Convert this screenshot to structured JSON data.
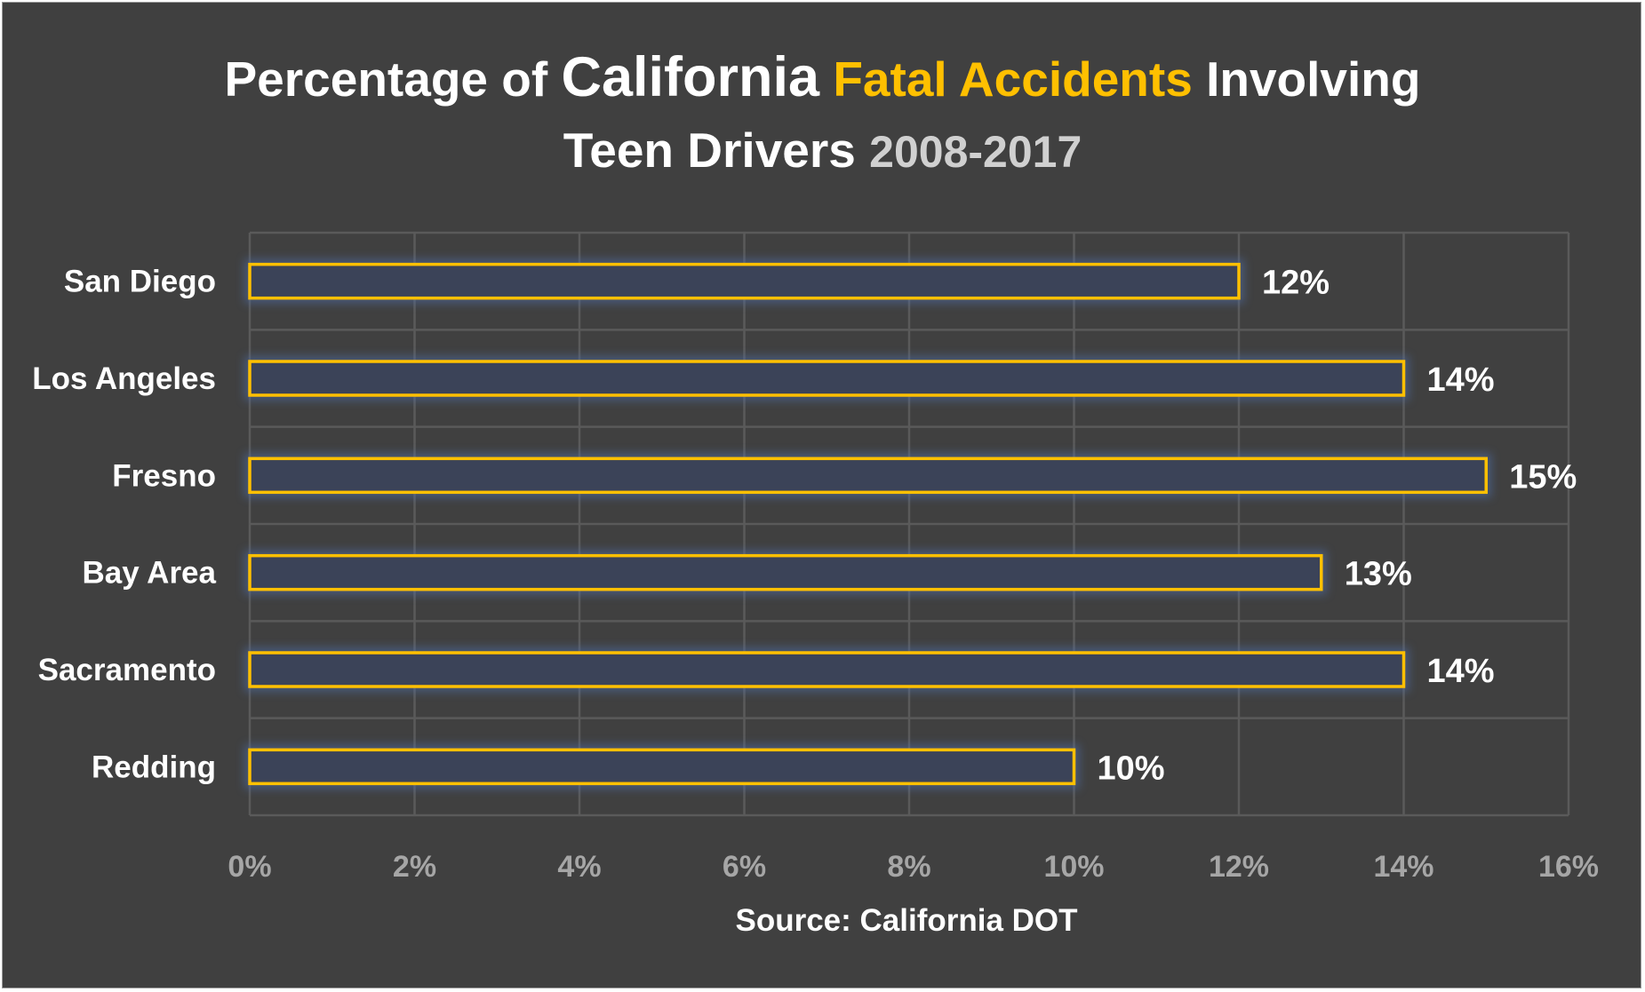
{
  "chart_data": {
    "type": "bar",
    "orientation": "horizontal",
    "title_parts": [
      {
        "text": "Percentage of ",
        "style": "normal"
      },
      {
        "text": "California",
        "style": "big"
      },
      {
        "text": " ",
        "style": "normal"
      },
      {
        "text": "Fatal Accidents",
        "style": "accent"
      },
      {
        "text": " Involving",
        "style": "normal"
      }
    ],
    "subtitle_parts": [
      {
        "text": "Teen Drivers",
        "style": "normal"
      },
      {
        "text": " ",
        "style": "normal"
      },
      {
        "text": "2008-2017",
        "style": "muted"
      }
    ],
    "categories": [
      "San Diego",
      "Los Angeles",
      "Fresno",
      "Bay Area",
      "Sacramento",
      "Redding"
    ],
    "values": [
      12,
      14,
      15,
      13,
      14,
      10
    ],
    "value_labels": [
      "12%",
      "14%",
      "15%",
      "13%",
      "14%",
      "10%"
    ],
    "xlim": [
      0,
      16
    ],
    "x_ticks": [
      0,
      2,
      4,
      6,
      8,
      10,
      12,
      14,
      16
    ],
    "x_tick_labels": [
      "0%",
      "2%",
      "4%",
      "6%",
      "8%",
      "10%",
      "12%",
      "14%",
      "16%"
    ],
    "xlabel": "Source: California DOT",
    "grid": true,
    "legend": "none",
    "colors": {
      "background": "#404040",
      "bar_outline": "#ffc000",
      "bar_fill": "#3b4358",
      "bar_glow": "#4f6ea8",
      "grid": "#5a5a5a",
      "text": "#ffffff",
      "accent": "#ffc000",
      "muted": "#a6a6a6"
    }
  }
}
